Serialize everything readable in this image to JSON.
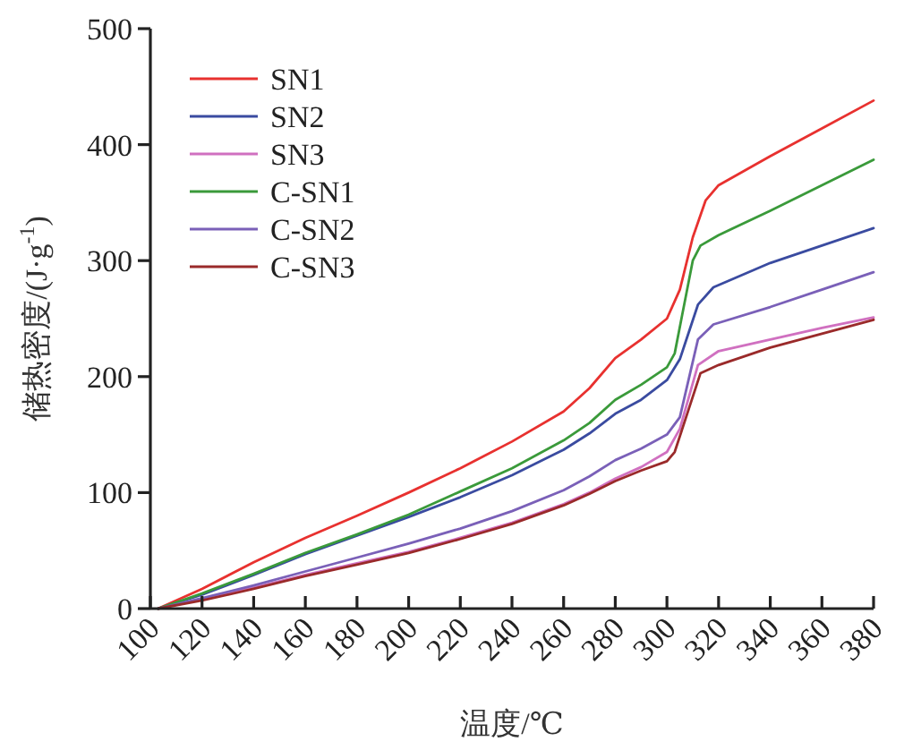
{
  "chart_data": {
    "type": "line",
    "xlabel": "温度/℃",
    "ylabel": "储热密度/(J·g$^{-1}$)",
    "xlim": [
      100,
      380
    ],
    "xticks": [
      100,
      120,
      140,
      160,
      180,
      200,
      220,
      240,
      260,
      280,
      300,
      320,
      340,
      360,
      380
    ],
    "ylim": [
      0,
      500
    ],
    "yticks": [
      0,
      100,
      200,
      300,
      400,
      500
    ],
    "grid": false,
    "legend": "top left",
    "marker": "none",
    "line_style": "solid",
    "series": [
      {
        "name": "SN1",
        "color": "#e8312f",
        "x": [
          103,
          120,
          140,
          160,
          180,
          200,
          220,
          240,
          260,
          270,
          280,
          290,
          300,
          305,
          310,
          315,
          320,
          340,
          360,
          380
        ],
        "values": [
          0,
          17,
          40,
          61,
          80,
          100,
          121,
          144,
          170,
          190,
          216,
          232,
          250,
          275,
          320,
          352,
          365,
          390,
          414,
          438
        ]
      },
      {
        "name": "SN2",
        "color": "#3a4ba0",
        "x": [
          103,
          120,
          140,
          160,
          180,
          200,
          220,
          240,
          260,
          270,
          280,
          290,
          300,
          305,
          312,
          318,
          340,
          360,
          380
        ],
        "values": [
          0,
          12,
          29,
          47,
          63,
          79,
          96,
          115,
          137,
          151,
          168,
          180,
          197,
          215,
          262,
          277,
          298,
          313,
          328
        ]
      },
      {
        "name": "SN3",
        "color": "#d070c0",
        "x": [
          103,
          120,
          140,
          160,
          180,
          200,
          220,
          240,
          260,
          270,
          280,
          290,
          300,
          305,
          312,
          320,
          340,
          360,
          380
        ],
        "values": [
          0,
          8,
          18,
          29,
          39,
          49,
          61,
          74,
          90,
          100,
          112,
          122,
          135,
          155,
          210,
          222,
          232,
          242,
          251
        ]
      },
      {
        "name": "C-SN1",
        "color": "#3a9a3a",
        "x": [
          103,
          120,
          140,
          160,
          180,
          200,
          220,
          240,
          260,
          270,
          280,
          290,
          300,
          303,
          310,
          313,
          320,
          340,
          360,
          380
        ],
        "values": [
          0,
          13,
          30,
          48,
          64,
          81,
          101,
          121,
          145,
          160,
          180,
          193,
          208,
          220,
          300,
          313,
          322,
          343,
          365,
          387
        ]
      },
      {
        "name": "C-SN2",
        "color": "#7a60b8",
        "x": [
          103,
          120,
          140,
          160,
          180,
          200,
          220,
          240,
          260,
          270,
          280,
          290,
          300,
          305,
          312,
          318,
          340,
          360,
          380
        ],
        "values": [
          0,
          9,
          20,
          32,
          44,
          56,
          69,
          84,
          102,
          114,
          128,
          138,
          150,
          165,
          232,
          245,
          260,
          275,
          290
        ]
      },
      {
        "name": "C-SN3",
        "color": "#9a2a2a",
        "x": [
          103,
          120,
          140,
          160,
          180,
          200,
          220,
          240,
          260,
          270,
          280,
          290,
          300,
          303,
          313,
          320,
          340,
          360,
          380
        ],
        "values": [
          0,
          7,
          17,
          28,
          38,
          48,
          60,
          73,
          89,
          99,
          110,
          119,
          127,
          135,
          203,
          210,
          225,
          237,
          249
        ]
      }
    ]
  }
}
